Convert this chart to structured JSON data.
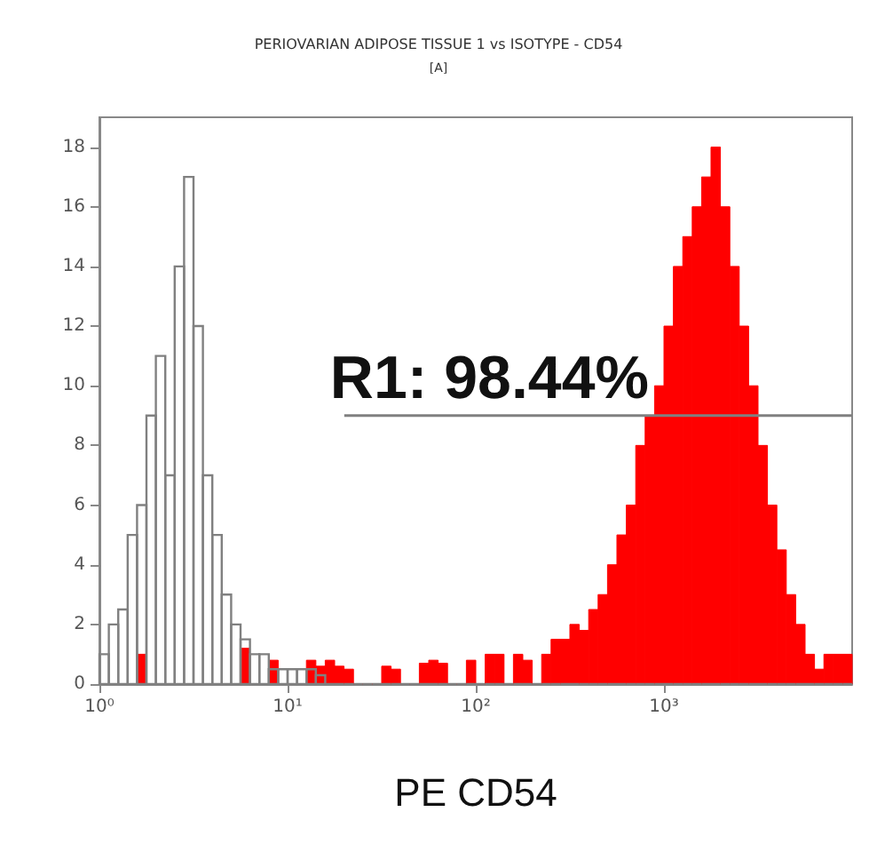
{
  "chart_data": {
    "type": "histogram",
    "title": "PERIOVARIAN ADIPOSE TISSUE 1 vs ISOTYPE - CD54",
    "subtitle": "[A]",
    "xlabel": "PE CD54",
    "log": "x",
    "bins": [
      1,
      1.122,
      1.259,
      1.413,
      1.585,
      1.778,
      1.995,
      2.239,
      2.512,
      2.818,
      3.162,
      3.548,
      3.981,
      4.467,
      5.012,
      5.623,
      6.31,
      7.079,
      7.943,
      8.913,
      10,
      11.22,
      12.59,
      14.13,
      15.85,
      17.78,
      19.95,
      22.39,
      25.12,
      28.18,
      31.62,
      35.48,
      39.81,
      44.67,
      50.12,
      56.23,
      63.1,
      70.79,
      79.43,
      89.13,
      100,
      112.2,
      125.9,
      141.3,
      158.5,
      177.8,
      199.5,
      223.9,
      251.2,
      281.8,
      316.2,
      354.8,
      398.1,
      446.7,
      501.2,
      562.3,
      631,
      707.9,
      794.3,
      891.3,
      1000,
      1122,
      1259,
      1413,
      1585,
      1778,
      1995,
      2239,
      2512,
      2818,
      3162,
      3548,
      3981,
      4467,
      5012,
      5623,
      6310,
      7079,
      7943,
      8913,
      10000
    ],
    "series": [
      {
        "color": "#808080",
        "values": [
          1,
          2,
          2.5,
          5,
          6,
          9,
          11,
          7,
          14,
          17,
          12,
          7,
          5,
          3,
          2,
          1.5,
          1,
          1,
          0.5,
          0.5,
          0.5,
          0.5,
          0.5,
          0.3,
          0,
          0,
          0,
          0,
          0,
          0,
          0,
          0,
          0,
          0,
          0,
          0,
          0,
          0,
          0,
          0,
          0,
          0,
          0,
          0,
          0,
          0,
          0,
          0,
          0,
          0,
          0,
          0,
          0,
          0,
          0,
          0,
          0,
          0,
          0,
          0,
          0,
          0,
          0,
          0,
          0,
          0,
          0,
          0,
          0,
          0,
          0,
          0,
          0,
          0,
          0,
          0,
          0,
          0,
          0,
          0
        ]
      },
      {
        "color": "#ff0000",
        "values": [
          0,
          0,
          0,
          0,
          1,
          0,
          0,
          0,
          0,
          0,
          0,
          0,
          0,
          0,
          0,
          1.2,
          0,
          0,
          0.8,
          0,
          0,
          0,
          0.8,
          0.6,
          0.8,
          0.6,
          0.5,
          0,
          0,
          0,
          0.6,
          0.5,
          0,
          0,
          0.7,
          0.8,
          0.7,
          0,
          0,
          0.8,
          0,
          1,
          1,
          0,
          1,
          0.8,
          0,
          1,
          1.5,
          1.5,
          2,
          1.8,
          2.5,
          3,
          4,
          5,
          6,
          8,
          9,
          10,
          12,
          14,
          15,
          16,
          17,
          18,
          16,
          14,
          12,
          10,
          8,
          6,
          4.5,
          3,
          2,
          1,
          0.5,
          1,
          1,
          1
        ]
      },
      {
        "type": "line",
        "color": "#808080",
        "x": [
          20,
          10000
        ],
        "values": [
          9,
          9
        ]
      }
    ],
    "annotations": [
      {
        "text": "R1: 98.44%",
        "x": 20,
        "y": 9
      }
    ],
    "xlim": [
      1,
      10000
    ],
    "xticks": [
      {
        "value": 1,
        "label": "10⁰"
      },
      {
        "value": 10,
        "label": "10¹"
      },
      {
        "value": 100,
        "label": "10²"
      },
      {
        "value": 1000,
        "label": "10³"
      }
    ],
    "ylim": [
      0,
      19
    ],
    "yticks": [
      0,
      2,
      4,
      6,
      8,
      10,
      12,
      14,
      16,
      18
    ],
    "grid": false
  }
}
